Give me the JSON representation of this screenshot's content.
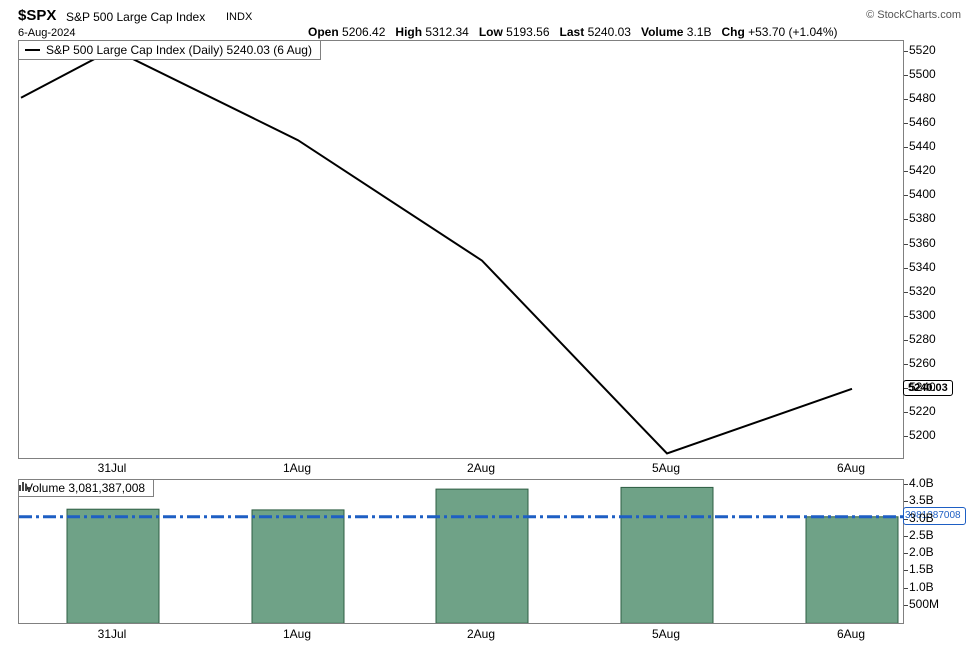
{
  "header": {
    "symbol": "$SPX",
    "name": "S&P 500 Large Cap Index",
    "exchange": "INDX",
    "copyright": "© StockCharts.com",
    "date": "6-Aug-2024",
    "quote": {
      "open_label": "Open",
      "open_value": "5206.42",
      "high_label": "High",
      "high_value": "5312.34",
      "low_label": "Low",
      "low_value": "5193.56",
      "last_label": "Last",
      "last_value": "5240.03",
      "volume_label": "Volume",
      "volume_value": "3.1B",
      "chg_label": "Chg",
      "chg_value": "+53.70 (+1.04%)"
    }
  },
  "price_panel": {
    "legend": "S&P 500 Large Cap Index (Daily) 5240.03 (6 Aug)",
    "last_tag": "5240.03"
  },
  "volume_panel": {
    "legend": "Volume 3,081,387,008",
    "value_tag": "3081387008"
  },
  "colors": {
    "price_line": "#000000",
    "bar_fill": "#6FA287",
    "bar_border": "#2E5E43",
    "volume_line": "#1E5FC4",
    "panel_border": "#808080",
    "tag_border": "#000000"
  },
  "chart_data": [
    {
      "type": "line",
      "title": "S&P 500 Large Cap Index (Daily)",
      "x": [
        "31Jul",
        "1Aug",
        "2Aug",
        "5Aug",
        "6Aug"
      ],
      "values": [
        5522.3,
        5446.7,
        5346.6,
        5186.3,
        5240.03
      ],
      "lead_in_value": 5482,
      "ylim": [
        5190,
        5535
      ],
      "yticks": [
        5520,
        5500,
        5480,
        5460,
        5440,
        5420,
        5400,
        5380,
        5360,
        5340,
        5320,
        5300,
        5280,
        5260,
        5240,
        5220,
        5200
      ],
      "grid": false,
      "legend_position": "top-left",
      "last_value_label": "5240.03"
    },
    {
      "type": "bar",
      "title": "Volume",
      "x": [
        "31Jul",
        "1Aug",
        "2Aug",
        "5Aug",
        "6Aug"
      ],
      "values_billions": [
        3.3,
        3.28,
        3.88,
        3.93,
        3.0814
      ],
      "current_volume_billions": 3.081387008,
      "current_volume_label": "3,081,387,008",
      "ytick_labels": [
        "4.0B",
        "3.5B",
        "3.0B",
        "2.5B",
        "2.0B",
        "1.5B",
        "1.0B",
        "500M"
      ],
      "ytick_values": [
        4.0,
        3.5,
        3.0,
        2.5,
        2.0,
        1.5,
        1.0,
        0.5
      ],
      "ylim": [
        0,
        4.2
      ],
      "grid": false
    }
  ]
}
